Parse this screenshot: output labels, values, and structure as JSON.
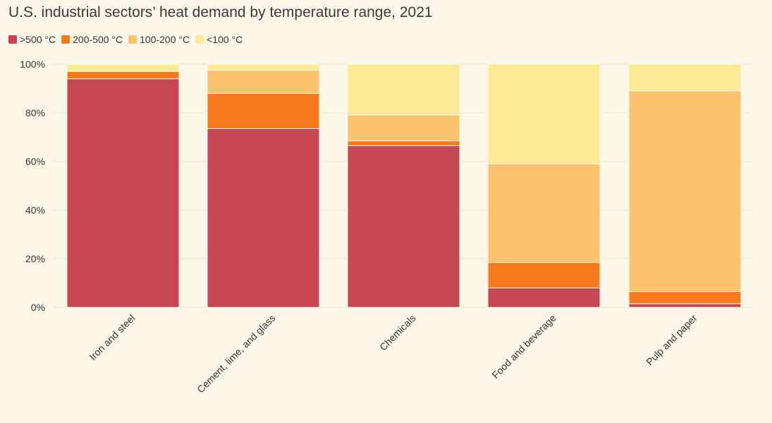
{
  "chart_data": {
    "type": "bar",
    "stacked": true,
    "title": "U.S. industrial sectors’ heat demand by temperature range, 2021",
    "xlabel": "",
    "ylabel": "",
    "ylim": [
      0,
      100
    ],
    "yticks": [
      "0%",
      "20%",
      "40%",
      "60%",
      "80%",
      "100%"
    ],
    "ytick_values": [
      0,
      20,
      40,
      60,
      80,
      100
    ],
    "categories": [
      "Iron and steel",
      "Cement, lime, and glass",
      "Chemicals",
      "Food and beverage",
      "Pulp and paper"
    ],
    "series": [
      {
        "name": ">500 °C",
        "color": "#c64652",
        "values": [
          94,
          73.5,
          66.5,
          8,
          1.5
        ]
      },
      {
        "name": "200-500 °C",
        "color": "#f77a1c",
        "values": [
          3,
          14.5,
          2,
          10.5,
          5
        ]
      },
      {
        "name": "100-200 °C",
        "color": "#fcc26e",
        "values": [
          0,
          9.5,
          10.5,
          40.5,
          82.5
        ]
      },
      {
        "name": "<100 °C",
        "color": "#fdea94",
        "values": [
          3,
          2.5,
          21,
          41,
          11
        ]
      }
    ],
    "legend_position": "top-left"
  }
}
